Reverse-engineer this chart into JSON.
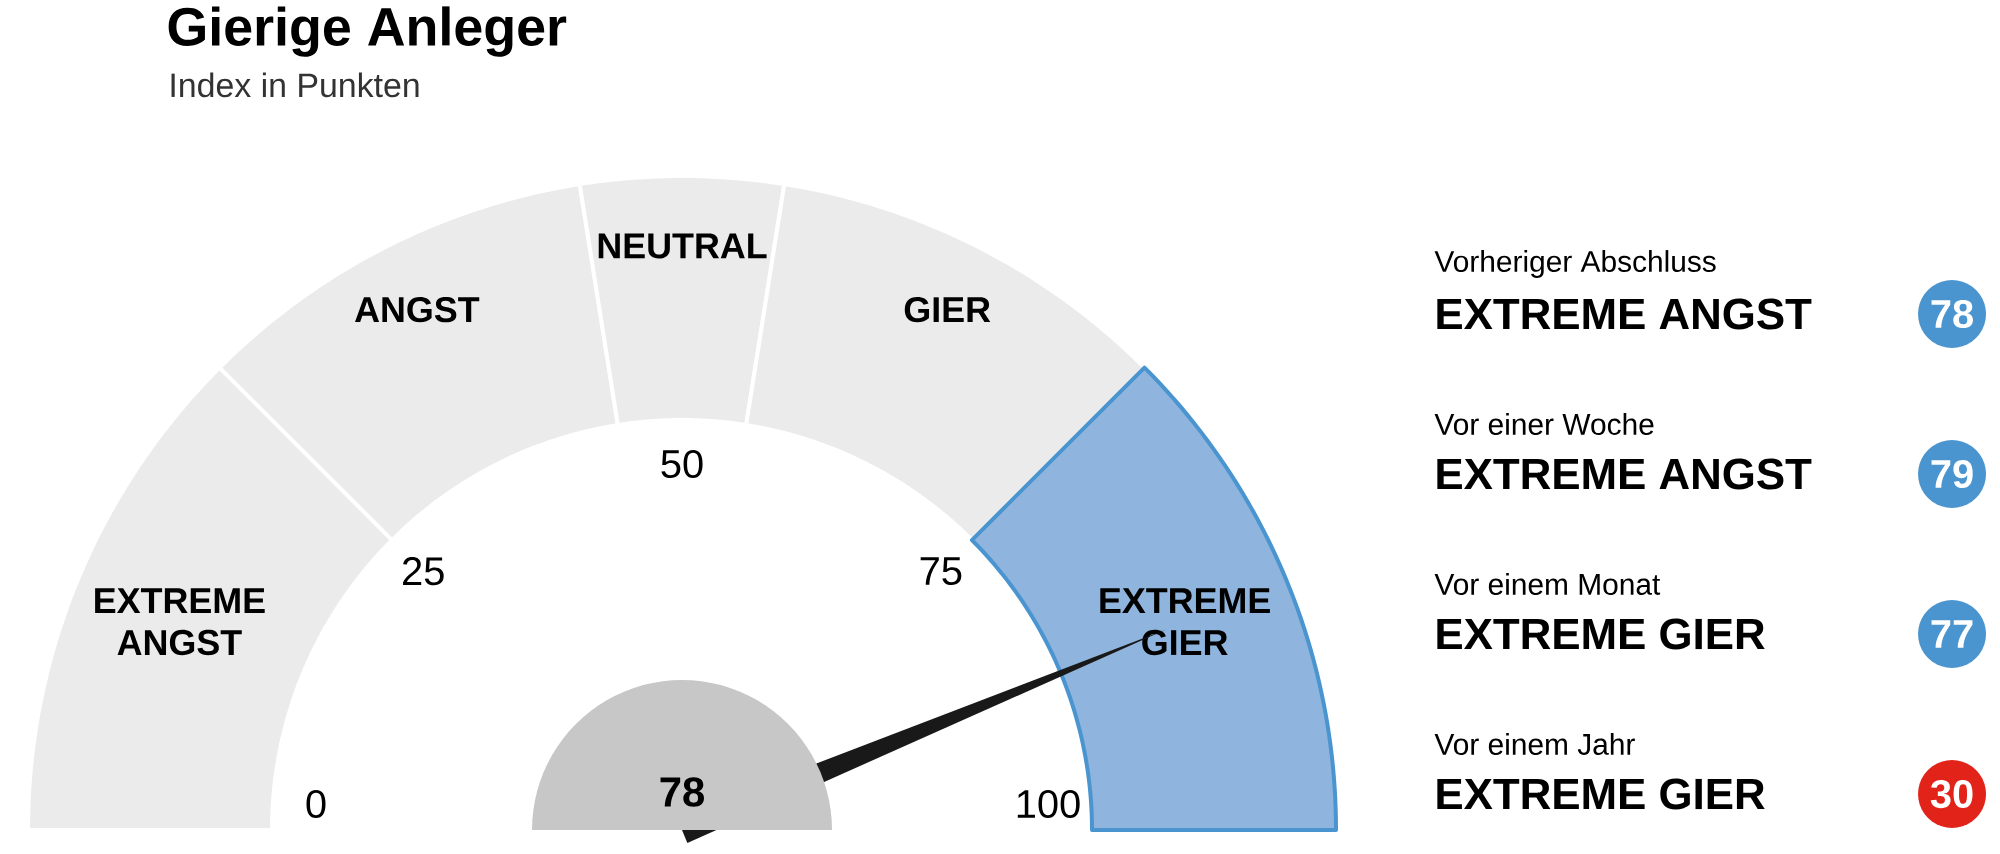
{
  "chart_data": [
    {
      "type": "donut",
      "title": "Gierige Anleger",
      "subtitle": "Index in Punkten",
      "categories": [
        "EXTREME ANGST",
        "ANGST",
        "NEUTRAL",
        "GIER",
        "EXTREME GIER"
      ],
      "values": [
        25,
        20,
        10,
        20,
        25
      ],
      "colors": [
        "#ebebeb",
        "#ebebeb",
        "#ebebeb",
        "#ebebeb",
        "#8fb4de"
      ],
      "needle": "EXTREME GIER",
      "annotations": [
        "0",
        "25",
        "50",
        "75",
        "100",
        "78"
      ]
    },
    {
      "type": "other",
      "categories": [
        "Vorheriger Abschluss",
        "Vor einer Woche",
        "Vor einem Monat",
        "Vor einem Jahr"
      ],
      "annotations": [
        "EXTREME ANGST",
        "EXTREME ANGST",
        "EXTREME GIER",
        "EXTREME GIER"
      ],
      "values": [
        78,
        79,
        77,
        30
      ],
      "colors": [
        "#4a95cf",
        "#4a95cf",
        "#4a95cf",
        "#e2231a"
      ],
      "data_labels": true
    }
  ]
}
